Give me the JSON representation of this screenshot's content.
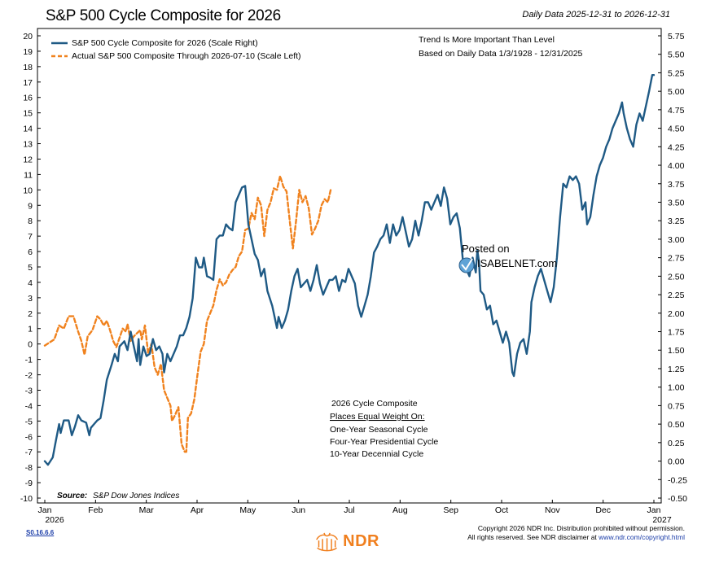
{
  "header": {
    "title": "S&P 500 Cycle Composite for 2026",
    "subtitle": "Daily Data 2025-12-31 to 2026-12-31"
  },
  "chart_data": {
    "type": "line",
    "title": "S&P 500 Cycle Composite for 2026",
    "left_axis": {
      "ylim": [
        -10,
        20
      ],
      "ticks": [
        "20",
        "19",
        "18",
        "17",
        "16",
        "15",
        "14",
        "13",
        "12",
        "11",
        "10",
        "9",
        "8",
        "7",
        "6",
        "5",
        "4",
        "3",
        "2",
        "1",
        "0",
        "-1",
        "-2",
        "-3",
        "-4",
        "-5",
        "-6",
        "-7",
        "-8",
        "-9",
        "-10"
      ]
    },
    "right_axis": {
      "ylim": [
        -0.5,
        5.75
      ],
      "ticks": [
        "5.75",
        "5.50",
        "5.25",
        "5.00",
        "4.75",
        "4.50",
        "4.25",
        "4.00",
        "3.75",
        "3.50",
        "3.25",
        "3.00",
        "2.75",
        "2.50",
        "2.25",
        "2.00",
        "1.75",
        "1.50",
        "1.25",
        "1.00",
        "0.75",
        "0.50",
        "0.25",
        "0.00",
        "-0.25",
        "-0.50"
      ]
    },
    "x_ticks": [
      "Jan",
      "Feb",
      "Mar",
      "Apr",
      "May",
      "Jun",
      "Jul",
      "Aug",
      "Sep",
      "Oct",
      "Nov",
      "Dec",
      "Jan"
    ],
    "x_year_labels": [
      "2026",
      "2027"
    ],
    "grid": false,
    "legend_position": "top-left",
    "series": [
      {
        "name": "S&P 500 Cycle Composite for 2026 (Scale Right)",
        "axis": "right",
        "color": "#1f5a85",
        "style": "solid",
        "points": [
          [
            0.0,
            0.0
          ],
          [
            0.1,
            -0.05
          ],
          [
            0.25,
            0.05
          ],
          [
            0.35,
            0.28
          ],
          [
            0.45,
            0.5
          ],
          [
            0.5,
            0.38
          ],
          [
            0.6,
            0.55
          ],
          [
            0.75,
            0.55
          ],
          [
            0.85,
            0.35
          ],
          [
            0.95,
            0.47
          ],
          [
            1.05,
            0.62
          ],
          [
            1.15,
            0.55
          ],
          [
            1.3,
            0.52
          ],
          [
            1.4,
            0.35
          ],
          [
            1.45,
            0.45
          ],
          [
            1.55,
            0.5
          ],
          [
            1.65,
            0.55
          ],
          [
            1.75,
            0.58
          ],
          [
            1.85,
            0.82
          ],
          [
            1.95,
            1.1
          ],
          [
            2.1,
            1.3
          ],
          [
            2.2,
            1.45
          ],
          [
            2.3,
            1.35
          ],
          [
            2.35,
            1.55
          ],
          [
            2.5,
            1.62
          ],
          [
            2.6,
            1.5
          ],
          [
            2.7,
            1.75
          ],
          [
            2.8,
            1.55
          ],
          [
            2.9,
            1.35
          ],
          [
            2.95,
            1.65
          ],
          [
            3.0,
            1.3
          ],
          [
            3.1,
            1.55
          ],
          [
            3.2,
            1.42
          ],
          [
            3.3,
            1.45
          ],
          [
            3.4,
            1.65
          ],
          [
            3.5,
            1.5
          ],
          [
            3.6,
            1.55
          ],
          [
            3.7,
            1.45
          ],
          [
            3.75,
            1.2
          ],
          [
            3.85,
            1.45
          ],
          [
            3.95,
            1.35
          ],
          [
            4.05,
            1.45
          ],
          [
            4.15,
            1.55
          ],
          [
            4.25,
            1.7
          ],
          [
            4.35,
            1.7
          ],
          [
            4.45,
            1.8
          ],
          [
            4.55,
            1.95
          ],
          [
            4.65,
            2.2
          ],
          [
            4.75,
            2.75
          ],
          [
            4.85,
            2.62
          ],
          [
            4.95,
            2.62
          ],
          [
            5.0,
            2.75
          ],
          [
            5.1,
            2.5
          ],
          [
            5.2,
            2.48
          ],
          [
            5.3,
            2.45
          ],
          [
            5.4,
            3.0
          ],
          [
            5.5,
            3.05
          ],
          [
            5.6,
            3.05
          ],
          [
            5.7,
            3.2
          ],
          [
            5.8,
            3.15
          ],
          [
            5.9,
            3.12
          ],
          [
            6.0,
            3.5
          ],
          [
            6.1,
            3.6
          ],
          [
            6.2,
            3.7
          ],
          [
            6.3,
            3.72
          ],
          [
            6.4,
            3.2
          ],
          [
            6.5,
            3.0
          ],
          [
            6.6,
            2.8
          ],
          [
            6.7,
            2.72
          ],
          [
            6.8,
            2.5
          ],
          [
            6.9,
            2.6
          ],
          [
            7.0,
            2.3
          ],
          [
            7.15,
            2.1
          ],
          [
            7.3,
            1.8
          ],
          [
            7.35,
            1.95
          ],
          [
            7.45,
            1.8
          ],
          [
            7.55,
            1.9
          ],
          [
            7.65,
            2.05
          ],
          [
            7.75,
            2.3
          ],
          [
            7.85,
            2.5
          ],
          [
            7.95,
            2.6
          ],
          [
            8.05,
            2.35
          ],
          [
            8.15,
            2.4
          ],
          [
            8.25,
            2.45
          ],
          [
            8.35,
            2.3
          ],
          [
            8.45,
            2.45
          ],
          [
            8.55,
            2.65
          ],
          [
            8.65,
            2.4
          ],
          [
            8.75,
            2.25
          ],
          [
            8.85,
            2.35
          ],
          [
            8.95,
            2.45
          ],
          [
            9.05,
            2.45
          ],
          [
            9.15,
            2.5
          ],
          [
            9.25,
            2.3
          ],
          [
            9.35,
            2.45
          ],
          [
            9.45,
            2.42
          ],
          [
            9.55,
            2.6
          ],
          [
            9.65,
            2.5
          ],
          [
            9.75,
            2.4
          ],
          [
            9.85,
            2.1
          ],
          [
            9.95,
            1.95
          ],
          [
            10.05,
            2.1
          ],
          [
            10.15,
            2.25
          ],
          [
            10.25,
            2.5
          ],
          [
            10.35,
            2.82
          ],
          [
            10.45,
            2.9
          ],
          [
            10.55,
            3.0
          ],
          [
            10.65,
            3.05
          ],
          [
            10.75,
            3.2
          ],
          [
            10.85,
            2.95
          ],
          [
            10.95,
            3.2
          ],
          [
            11.05,
            3.05
          ],
          [
            11.15,
            3.12
          ],
          [
            11.25,
            3.3
          ],
          [
            11.35,
            3.1
          ],
          [
            11.45,
            2.9
          ],
          [
            11.55,
            3.0
          ],
          [
            11.65,
            3.25
          ],
          [
            11.75,
            3.05
          ],
          [
            11.85,
            3.25
          ],
          [
            11.95,
            3.5
          ],
          [
            12.05,
            3.5
          ],
          [
            12.15,
            3.4
          ],
          [
            12.25,
            3.5
          ],
          [
            12.35,
            3.6
          ],
          [
            12.45,
            3.45
          ],
          [
            12.55,
            3.7
          ],
          [
            12.65,
            3.55
          ],
          [
            12.75,
            3.2
          ],
          [
            12.85,
            3.3
          ],
          [
            12.95,
            3.35
          ],
          [
            13.05,
            3.15
          ],
          [
            13.15,
            2.7
          ],
          [
            13.25,
            2.6
          ],
          [
            13.35,
            2.5
          ],
          [
            13.45,
            2.75
          ],
          [
            13.55,
            2.55
          ],
          [
            13.6,
            2.85
          ],
          [
            13.65,
            2.7
          ],
          [
            13.7,
            2.3
          ],
          [
            13.8,
            2.25
          ],
          [
            13.9,
            2.05
          ],
          [
            14.0,
            2.1
          ],
          [
            14.1,
            1.85
          ],
          [
            14.2,
            1.9
          ],
          [
            14.3,
            1.75
          ],
          [
            14.4,
            1.6
          ],
          [
            14.5,
            1.75
          ],
          [
            14.6,
            1.6
          ],
          [
            14.7,
            1.2
          ],
          [
            14.75,
            1.15
          ],
          [
            14.85,
            1.45
          ],
          [
            14.95,
            1.6
          ],
          [
            15.05,
            1.65
          ],
          [
            15.15,
            1.45
          ],
          [
            15.25,
            1.75
          ],
          [
            15.3,
            2.15
          ],
          [
            15.4,
            2.35
          ],
          [
            15.5,
            2.5
          ],
          [
            15.6,
            2.6
          ],
          [
            15.7,
            2.45
          ],
          [
            15.8,
            2.3
          ],
          [
            15.9,
            2.15
          ],
          [
            16.0,
            2.35
          ],
          [
            16.1,
            2.75
          ],
          [
            16.2,
            3.3
          ],
          [
            16.3,
            3.75
          ],
          [
            16.4,
            3.7
          ],
          [
            16.5,
            3.85
          ],
          [
            16.6,
            3.8
          ],
          [
            16.7,
            3.85
          ],
          [
            16.8,
            3.75
          ],
          [
            16.9,
            3.4
          ],
          [
            17.0,
            3.5
          ],
          [
            17.05,
            3.2
          ],
          [
            17.15,
            3.3
          ],
          [
            17.25,
            3.6
          ],
          [
            17.35,
            3.85
          ],
          [
            17.45,
            4.0
          ],
          [
            17.55,
            4.1
          ],
          [
            17.65,
            4.25
          ],
          [
            17.75,
            4.35
          ],
          [
            17.85,
            4.5
          ],
          [
            17.95,
            4.6
          ],
          [
            18.05,
            4.7
          ],
          [
            18.15,
            4.85
          ],
          [
            18.2,
            4.7
          ],
          [
            18.3,
            4.5
          ],
          [
            18.4,
            4.35
          ],
          [
            18.5,
            4.25
          ],
          [
            18.6,
            4.55
          ],
          [
            18.7,
            4.7
          ],
          [
            18.8,
            4.6
          ],
          [
            18.9,
            4.8
          ],
          [
            19.0,
            5.0
          ],
          [
            19.1,
            5.22
          ],
          [
            19.15,
            5.22
          ]
        ]
      },
      {
        "name": "Actual S&P 500 Composite Through 2026-07-10 (Scale Left)",
        "axis": "left",
        "color": "#f0821e",
        "style": "dashed",
        "points": [
          [
            0.0,
            -0.1
          ],
          [
            0.15,
            0.1
          ],
          [
            0.3,
            0.3
          ],
          [
            0.45,
            1.2
          ],
          [
            0.6,
            1.0
          ],
          [
            0.75,
            1.8
          ],
          [
            0.9,
            1.8
          ],
          [
            1.05,
            0.8
          ],
          [
            1.15,
            0.2
          ],
          [
            1.25,
            -0.7
          ],
          [
            1.35,
            0.5
          ],
          [
            1.5,
            0.9
          ],
          [
            1.65,
            1.8
          ],
          [
            1.75,
            1.6
          ],
          [
            1.85,
            1.2
          ],
          [
            1.95,
            1.5
          ],
          [
            2.05,
            0.9
          ],
          [
            2.15,
            0.2
          ],
          [
            2.25,
            -0.2
          ],
          [
            2.35,
            0.4
          ],
          [
            2.45,
            1.0
          ],
          [
            2.55,
            0.8
          ],
          [
            2.6,
            1.3
          ],
          [
            2.7,
            0.2
          ],
          [
            2.8,
            0.5
          ],
          [
            2.9,
            0.7
          ],
          [
            3.0,
            0.9
          ],
          [
            3.05,
            0.3
          ],
          [
            3.15,
            1.2
          ],
          [
            3.25,
            -0.6
          ],
          [
            3.35,
            0.0
          ],
          [
            3.45,
            -1.5
          ],
          [
            3.55,
            -2.0
          ],
          [
            3.65,
            -1.3
          ],
          [
            3.75,
            -3.0
          ],
          [
            3.85,
            -3.5
          ],
          [
            3.95,
            -4.0
          ],
          [
            4.0,
            -5.0
          ],
          [
            4.1,
            -4.6
          ],
          [
            4.2,
            -4.1
          ],
          [
            4.3,
            -6.5
          ],
          [
            4.4,
            -7.0
          ],
          [
            4.45,
            -7.0
          ],
          [
            4.5,
            -4.8
          ],
          [
            4.6,
            -4.5
          ],
          [
            4.7,
            -3.6
          ],
          [
            4.8,
            -2.0
          ],
          [
            4.9,
            -0.5
          ],
          [
            5.0,
            0.0
          ],
          [
            5.1,
            1.5
          ],
          [
            5.2,
            2.0
          ],
          [
            5.3,
            2.5
          ],
          [
            5.4,
            3.5
          ],
          [
            5.5,
            4.2
          ],
          [
            5.6,
            3.8
          ],
          [
            5.7,
            4.0
          ],
          [
            5.8,
            4.5
          ],
          [
            5.9,
            4.8
          ],
          [
            6.0,
            5.0
          ],
          [
            6.1,
            5.7
          ],
          [
            6.2,
            6.0
          ],
          [
            6.3,
            7.4
          ],
          [
            6.4,
            7.5
          ],
          [
            6.5,
            8.5
          ],
          [
            6.6,
            8.1
          ],
          [
            6.7,
            9.5
          ],
          [
            6.8,
            9.0
          ],
          [
            6.9,
            7.0
          ],
          [
            7.0,
            8.7
          ],
          [
            7.1,
            9.2
          ],
          [
            7.2,
            10.1
          ],
          [
            7.3,
            10.0
          ],
          [
            7.4,
            10.9
          ],
          [
            7.5,
            10.2
          ],
          [
            7.6,
            9.9
          ],
          [
            7.7,
            8.0
          ],
          [
            7.8,
            6.2
          ],
          [
            7.9,
            8.0
          ],
          [
            8.0,
            10.0
          ],
          [
            8.1,
            9.2
          ],
          [
            8.2,
            9.6
          ],
          [
            8.3,
            8.8
          ],
          [
            8.4,
            7.1
          ],
          [
            8.5,
            7.5
          ],
          [
            8.6,
            8.0
          ],
          [
            8.7,
            9.0
          ],
          [
            8.8,
            9.4
          ],
          [
            8.9,
            9.2
          ],
          [
            9.0,
            10.1
          ]
        ]
      }
    ],
    "annotations": [
      "Trend Is More Important Than Level",
      "Based on Daily Data 1/3/1928 - 12/31/2025"
    ]
  },
  "notes": {
    "line1": "2026 Cycle Composite",
    "line2": "Places Equal Weight On:",
    "line3": "One-Year Seasonal Cycle",
    "line4": "Four-Year Presidential Cycle",
    "line5": "10-Year Decennial Cycle"
  },
  "source": {
    "label": "Source:",
    "text": "S&P Dow Jones Indices"
  },
  "watermark": {
    "line1": "Posted on",
    "line2": "ISABELNET.com"
  },
  "footer": {
    "code": "S0.16.6.6",
    "logo_text": "NDR",
    "copyright_line1": "Copyright 2026 NDR Inc. Distribution prohibited without permission.",
    "copyright_line2": "All rights reserved. See NDR disclaimer at ",
    "copyright_link": "www.ndr.com/copyright.html"
  }
}
